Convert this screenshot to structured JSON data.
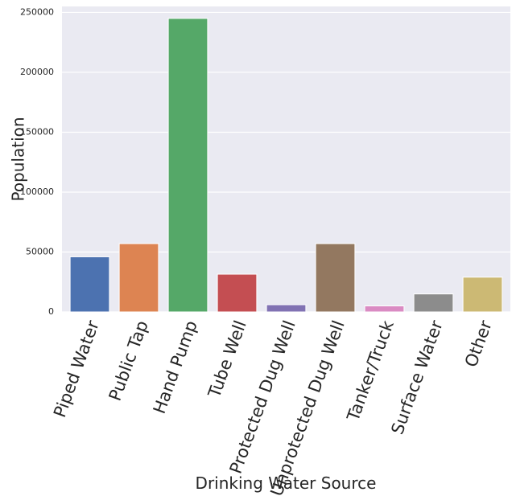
{
  "chart_data": {
    "type": "bar",
    "title": "",
    "xlabel": "Drinking Water Source",
    "ylabel": "Population",
    "categories": [
      "Piped Water",
      "Public Tap",
      "Hand Pump",
      "Tube Well",
      "Protected Dug Well",
      "Unprotected Dug Well",
      "Tanker/Truck",
      "Surface Water",
      "Other"
    ],
    "values": [
      46000,
      57000,
      245000,
      31500,
      6000,
      57000,
      5000,
      15000,
      29000
    ],
    "colors": [
      "#4c72b0",
      "#dd8452",
      "#55a868",
      "#c44e52",
      "#8172b3",
      "#937860",
      "#da8bc3",
      "#8c8c8c",
      "#ccb974"
    ],
    "ylim": [
      0,
      255000
    ],
    "yticks": [
      0,
      50000,
      100000,
      150000,
      200000,
      250000
    ],
    "ytick_labels": [
      "0",
      "50000",
      "100000",
      "150000",
      "200000",
      "250000"
    ],
    "grid": true,
    "legend": "none"
  }
}
